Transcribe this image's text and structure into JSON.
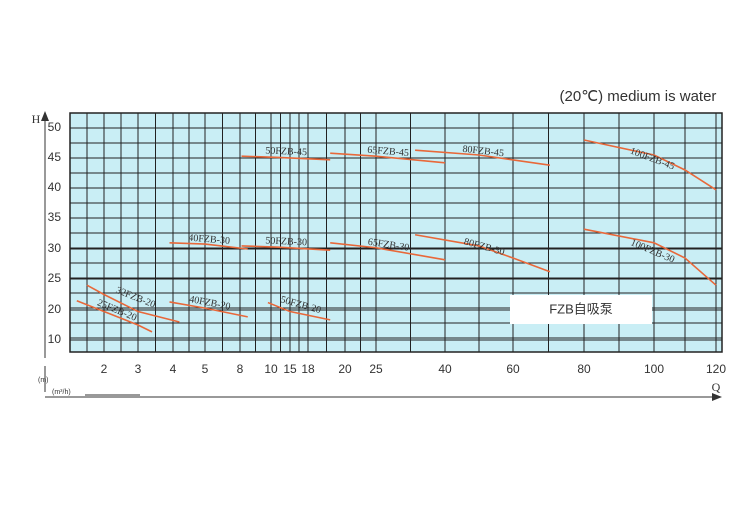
{
  "chart_data": {
    "type": "line",
    "title": "(20℃) medium is water",
    "annotation": "FZB自吸泵",
    "y_label": "H",
    "y_unit": "(m)",
    "x_label": "Q",
    "x_unit": "(m³/h)",
    "xticks": [
      2,
      3,
      4,
      5,
      8,
      10,
      15,
      18,
      20,
      25,
      40,
      60,
      80,
      100,
      120
    ],
    "yticks": [
      50,
      45,
      40,
      35,
      30,
      25,
      20,
      10
    ],
    "grid": true,
    "series": [
      {
        "name": "25FZB-20",
        "color": "#e8683a",
        "x": [
          1.2,
          2,
          3,
          3.4
        ],
        "values": [
          21.5,
          19.5,
          15,
          12.7
        ]
      },
      {
        "name": "32FZB-20",
        "color": "#e8683a",
        "x": [
          1.5,
          2,
          3,
          4.2
        ],
        "values": [
          24,
          22.5,
          19.5,
          16
        ]
      },
      {
        "name": "40FZB-30",
        "color": "#e8683a",
        "x": [
          3.9,
          5,
          8.5
        ],
        "values": [
          31,
          30.8,
          30
        ]
      },
      {
        "name": "40FZB-20",
        "color": "#e8683a",
        "x": [
          3.9,
          5,
          8.5
        ],
        "values": [
          21.3,
          20.3,
          17.7
        ]
      },
      {
        "name": "50FZB-45",
        "color": "#e8683a",
        "x": [
          8.1,
          12,
          19.2
        ],
        "values": [
          45.3,
          45.1,
          44.7
        ]
      },
      {
        "name": "50FZB-30",
        "color": "#e8683a",
        "x": [
          8.1,
          12,
          19.2
        ],
        "values": [
          30.5,
          30.3,
          29.8
        ]
      },
      {
        "name": "50FZB-20",
        "color": "#e8683a",
        "x": [
          9.8,
          15,
          19.2
        ],
        "values": [
          21.2,
          19.5,
          16.7
        ]
      },
      {
        "name": "65FZB-45",
        "color": "#e8683a",
        "x": [
          19.2,
          25,
          40
        ],
        "values": [
          45.8,
          45.3,
          44.2
        ]
      },
      {
        "name": "65FZB-30",
        "color": "#e8683a",
        "x": [
          19.2,
          25,
          40
        ],
        "values": [
          31,
          30.2,
          28.2
        ]
      },
      {
        "name": "80FZB-45",
        "color": "#e8683a",
        "x": [
          33.5,
          50,
          70.4
        ],
        "values": [
          46.3,
          45.5,
          43.8
        ]
      },
      {
        "name": "80FZB-30",
        "color": "#e8683a",
        "x": [
          33.5,
          50,
          60,
          70.4
        ],
        "values": [
          32.3,
          30.5,
          28.5,
          26.2
        ]
      },
      {
        "name": "100FZB-45",
        "color": "#e8683a",
        "x": [
          80,
          100,
          110,
          120
        ],
        "values": [
          48,
          45.5,
          43,
          39.7
        ]
      },
      {
        "name": "100FZB-30",
        "color": "#e8683a",
        "x": [
          80,
          100,
          110,
          120
        ],
        "values": [
          33.2,
          31,
          28.5,
          24
        ]
      }
    ]
  }
}
